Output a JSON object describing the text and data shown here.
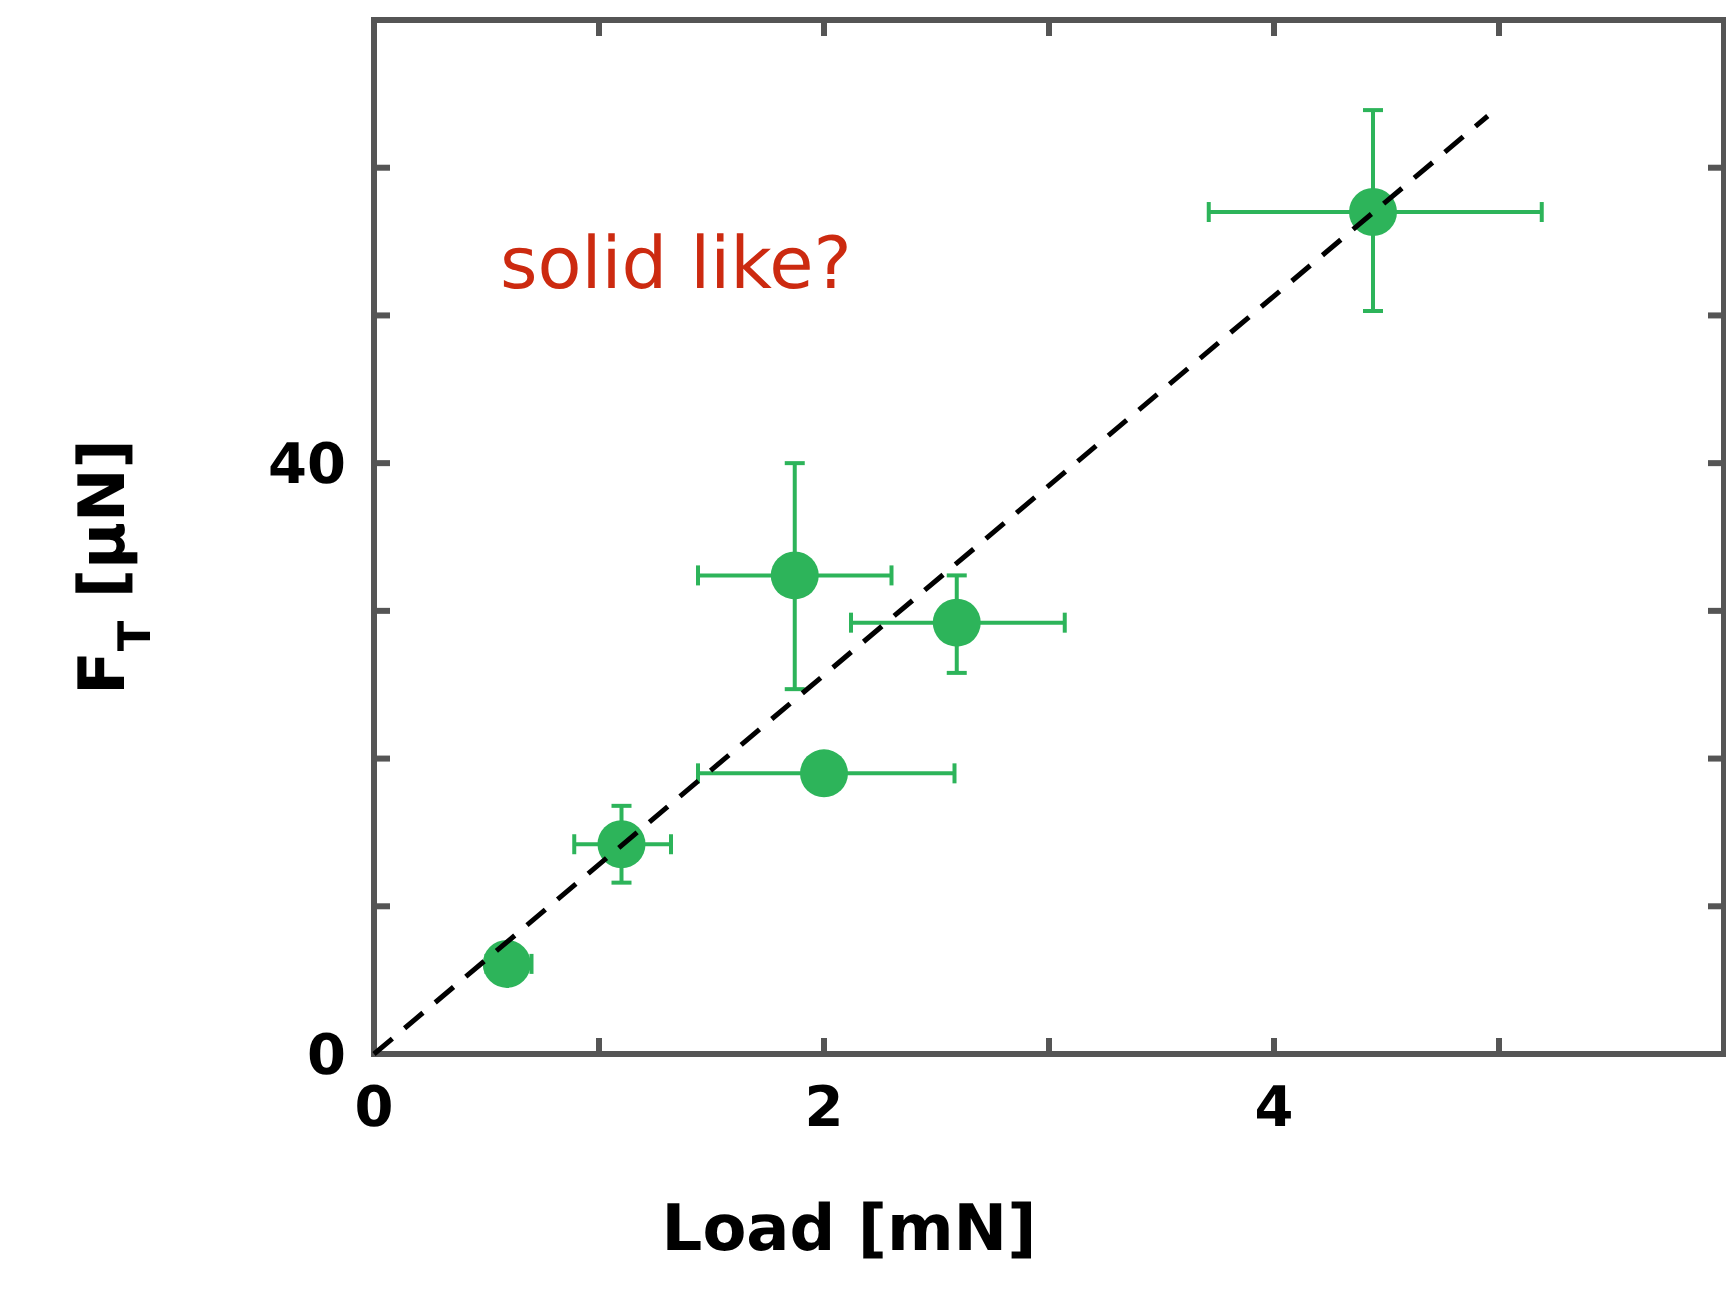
{
  "chart_data": {
    "type": "scatter",
    "xlabel": "Load [mN]",
    "ylabel": "F$_{T}$ [μN]",
    "xlim": [
      0,
      6
    ],
    "ylim": [
      0,
      70
    ],
    "xticks": [
      0,
      {
        "value": 1,
        "label": null
      },
      2,
      {
        "value": 3,
        "label": null
      },
      4,
      {
        "value": 5,
        "label": null
      }
    ],
    "yticks": [
      0,
      {
        "value": 10,
        "label": null
      },
      {
        "value": 20,
        "label": null
      },
      {
        "value": 30,
        "label": null
      },
      40,
      {
        "value": 50,
        "label": null
      },
      {
        "value": 60,
        "label": null
      }
    ],
    "grid": false,
    "annotations": [
      "solid like?"
    ],
    "series": [
      {
        "color": "#2db45a",
        "marker": "circle",
        "x": [
          0.59,
          1.1,
          1.87,
          2.0,
          2.59,
          4.44
        ],
        "values": [
          6.1,
          14.2,
          32.4,
          19.0,
          29.2,
          57.0
        ],
        "errors": [
          null,
          [
            11.6,
            16.8
          ],
          [
            24.7,
            40.0
          ],
          null,
          [
            25.8,
            32.4
          ],
          [
            50.3,
            63.9
          ]
        ],
        "xerrors": [
          [
            0.5,
            0.7
          ],
          [
            0.89,
            1.32
          ],
          [
            1.44,
            2.3
          ],
          [
            1.44,
            2.58
          ],
          [
            2.12,
            3.07
          ],
          [
            3.71,
            5.19
          ]
        ]
      },
      {
        "type": "line",
        "color": "#000000",
        "line_style": "dashed",
        "marker": "none",
        "x": [
          0,
          4.95
        ],
        "values": [
          0,
          63.5
        ]
      }
    ]
  }
}
